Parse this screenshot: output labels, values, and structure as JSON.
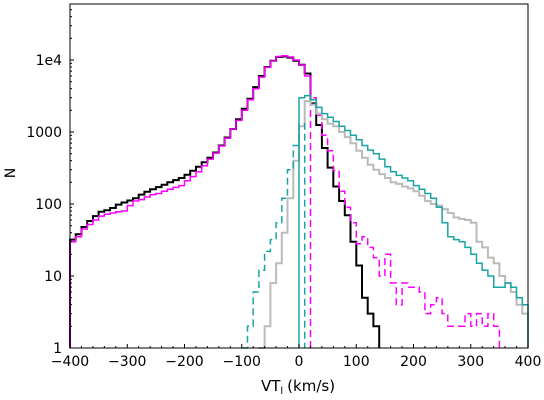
{
  "chart_data": {
    "type": "line",
    "style": "step histogram",
    "xlabel": "VT",
    "xlabel_sub": "l",
    "xlabel_unit": "(km/s)",
    "ylabel": "N",
    "xlim": [
      -400,
      400
    ],
    "ylim": [
      1,
      60000
    ],
    "yscale": "log",
    "grid": false,
    "legend": "none",
    "x_ticks": [
      -400,
      -300,
      -200,
      -100,
      0,
      100,
      200,
      300,
      400
    ],
    "x_tick_labels": [
      "−400",
      "−300",
      "−200",
      "−100",
      "0",
      "100",
      "200",
      "300",
      "400"
    ],
    "y_ticks": [
      1,
      10,
      100,
      1000,
      10000
    ],
    "y_tick_labels": [
      "1",
      "10",
      "100",
      "1000",
      "1e4"
    ],
    "series": [
      {
        "color": "#000000",
        "dash": "solid",
        "width": 2,
        "edges": [
          -400,
          -390,
          -380,
          -370,
          -360,
          -350,
          -340,
          -330,
          -320,
          -310,
          -300,
          -290,
          -280,
          -270,
          -260,
          -250,
          -240,
          -230,
          -220,
          -210,
          -200,
          -190,
          -180,
          -170,
          -160,
          -150,
          -140,
          -130,
          -120,
          -110,
          -100,
          -90,
          -80,
          -70,
          -60,
          -50,
          -40,
          -30,
          -20,
          -10,
          0,
          10,
          20,
          30,
          40,
          50,
          60,
          70,
          80,
          90,
          100,
          110,
          120,
          130,
          140
        ],
        "counts": [
          32,
          38,
          48,
          58,
          68,
          78,
          82,
          88,
          98,
          105,
          112,
          120,
          135,
          148,
          160,
          172,
          185,
          200,
          215,
          230,
          255,
          290,
          330,
          380,
          440,
          520,
          650,
          840,
          1100,
          1500,
          2100,
          2900,
          4200,
          6000,
          8000,
          9800,
          11000,
          11200,
          10800,
          9800,
          8600,
          6500,
          2500,
          1250,
          600,
          320,
          175,
          110,
          70,
          30,
          14,
          5,
          3,
          2,
          1
        ]
      },
      {
        "color": "#ff00ff",
        "dash": "solid",
        "width": 1.5,
        "edges": [
          -400,
          -390,
          -380,
          -370,
          -360,
          -350,
          -340,
          -330,
          -320,
          -310,
          -300,
          -290,
          -280,
          -270,
          -260,
          -250,
          -240,
          -230,
          -220,
          -210,
          -200,
          -190,
          -180,
          -170,
          -160,
          -150,
          -140,
          -130,
          -120,
          -110,
          -100,
          -90,
          -80,
          -70,
          -60,
          -50,
          -40,
          -30,
          -20,
          -10,
          0,
          10,
          20
        ],
        "counts": [
          30,
          35,
          45,
          52,
          60,
          68,
          72,
          75,
          78,
          80,
          95,
          110,
          115,
          125,
          135,
          140,
          150,
          160,
          170,
          180,
          210,
          240,
          280,
          340,
          420,
          510,
          640,
          820,
          1100,
          1450,
          2000,
          2800,
          4000,
          5800,
          7900,
          9700,
          11200,
          11500,
          11000,
          10000,
          8500,
          6000,
          3000
        ]
      },
      {
        "color": "#ff00ff",
        "dash": "dashed",
        "width": 1.5,
        "edges": [
          20,
          30,
          40,
          50,
          60,
          70,
          80,
          90,
          100,
          110,
          120,
          130,
          140,
          150,
          160,
          170,
          180,
          190,
          200,
          210,
          220,
          230,
          240,
          250,
          260,
          270,
          280,
          290,
          300,
          310,
          320,
          330,
          340,
          350
        ],
        "counts": [
          3000,
          1700,
          900,
          550,
          290,
          150,
          90,
          55,
          28,
          35,
          25,
          18,
          10,
          20,
          8,
          4,
          8,
          7,
          7,
          6,
          3,
          4,
          5,
          3,
          2,
          2,
          2,
          3,
          2,
          3,
          2,
          3,
          2,
          1
        ]
      },
      {
        "color": "#bbbbbb",
        "dash": "solid",
        "width": 2,
        "edges": [
          -70,
          -60,
          -50,
          -40,
          -30,
          -20,
          -10,
          0,
          10,
          20,
          30,
          40,
          50,
          60,
          70,
          80,
          90,
          100,
          110,
          120,
          130,
          140,
          150,
          160,
          170,
          180,
          190,
          200,
          210,
          220,
          230,
          240,
          250,
          260,
          270,
          280,
          290,
          300,
          310,
          320,
          330,
          340,
          350,
          360,
          370,
          380,
          390,
          400
        ],
        "counts": [
          1,
          2,
          8,
          15,
          40,
          120,
          400,
          1200,
          2700,
          2400,
          1800,
          1500,
          1300,
          1200,
          1000,
          850,
          700,
          550,
          440,
          350,
          300,
          260,
          230,
          200,
          190,
          175,
          165,
          150,
          130,
          110,
          100,
          95,
          85,
          75,
          65,
          62,
          60,
          55,
          30,
          25,
          18,
          15,
          10,
          8,
          6,
          4,
          3
        ]
      },
      {
        "color": "#1aa5a5",
        "dash": "dashed",
        "width": 1.5,
        "edges": [
          -100,
          -90,
          -80,
          -70,
          -60,
          -50,
          -40,
          -30,
          -20,
          -10,
          0,
          10
        ],
        "counts": [
          1,
          2,
          6,
          12,
          22,
          32,
          55,
          120,
          300,
          650,
          1300
        ]
      },
      {
        "color": "#1aa5a5",
        "dash": "solid",
        "width": 1.5,
        "edges": [
          0,
          10,
          20,
          30,
          40,
          50,
          60,
          70,
          80,
          90,
          100,
          110,
          120,
          130,
          140,
          150,
          160,
          170,
          180,
          190,
          200,
          210,
          220,
          230,
          240,
          250,
          260,
          270,
          280,
          290,
          300,
          310,
          320,
          330,
          340,
          350,
          360,
          370,
          380,
          390,
          400
        ],
        "counts": [
          3000,
          3200,
          2800,
          2200,
          1800,
          1600,
          1400,
          1200,
          1050,
          900,
          780,
          650,
          560,
          500,
          420,
          330,
          280,
          250,
          230,
          210,
          180,
          160,
          140,
          120,
          90,
          55,
          35,
          32,
          30,
          25,
          20,
          15,
          12,
          10,
          7,
          7,
          8,
          7,
          5,
          4
        ]
      }
    ]
  }
}
